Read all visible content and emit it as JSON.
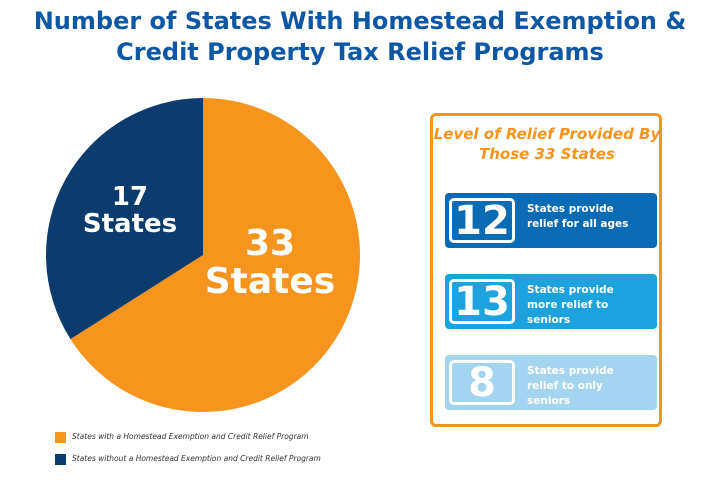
{
  "chart_data": {
    "type": "pie",
    "title": "Number of States With Homestead Exemption & Credit Property Tax Relief Programs",
    "categories": [
      "States with a Homestead Exemption and Credit Relief Program",
      "States without a Homestead Exemption and Credit Relief Program"
    ],
    "values": [
      33,
      17
    ],
    "value_labels": [
      "33 States",
      "17 States"
    ],
    "colors": [
      "#f7941d",
      "#0c3c6e"
    ]
  },
  "relief_panel": {
    "title": "Level of Relief Provided By Those 33 States",
    "items": [
      {
        "value": 12,
        "text": "States provide relief for all ages",
        "color": "#0a6bb5"
      },
      {
        "value": 13,
        "text": "States provide more relief to seniors",
        "color": "#1ea2de"
      },
      {
        "value": 8,
        "text": "States provide relief to only seniors",
        "color": "#a3d5f1"
      }
    ]
  }
}
